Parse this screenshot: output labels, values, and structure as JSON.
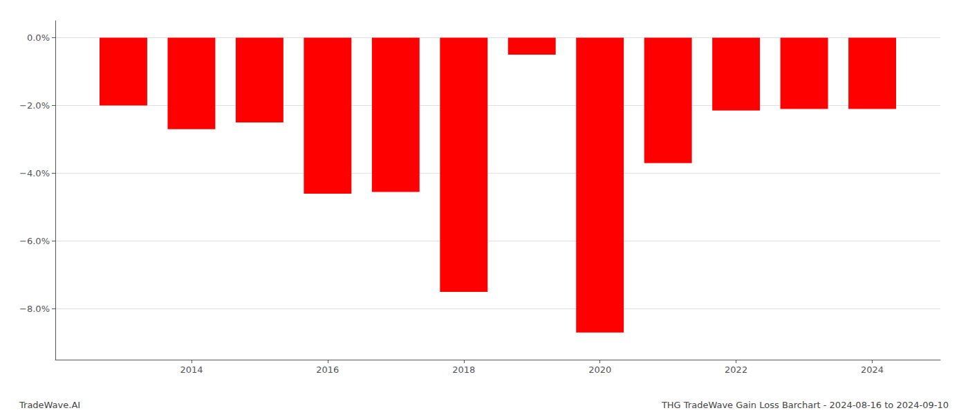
{
  "chart_data": {
    "type": "bar",
    "x": [
      2013,
      2014,
      2015,
      2016,
      2017,
      2018,
      2019,
      2020,
      2021,
      2022,
      2023,
      2024
    ],
    "values": [
      -2.0,
      -2.7,
      -2.5,
      -4.6,
      -4.55,
      -7.5,
      -0.5,
      -8.7,
      -3.7,
      -2.15,
      -2.1,
      -2.1
    ],
    "color": "#ff0000",
    "xlim": [
      2012,
      2025
    ],
    "xticks": [
      2014,
      2016,
      2018,
      2020,
      2022,
      2024
    ],
    "ylim": [
      -9.5,
      0.5
    ],
    "yticks": [
      {
        "value": 0.0,
        "label": "0.0%"
      },
      {
        "value": -2.0,
        "label": "−2.0%"
      },
      {
        "value": -4.0,
        "label": "−4.0%"
      },
      {
        "value": -6.0,
        "label": "−6.0%"
      },
      {
        "value": -8.0,
        "label": "−8.0%"
      }
    ],
    "grid": true,
    "annotations": [
      "TradeWave.AI",
      "THG TradeWave Gain Loss Barchart - 2024-08-16 to 2024-09-10"
    ]
  }
}
